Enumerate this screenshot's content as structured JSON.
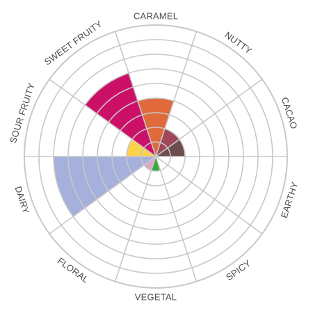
{
  "chart_data": {
    "type": "polar-area",
    "title": "",
    "rings": 9,
    "grid": true,
    "categories": [
      "CARAMEL",
      "NUTTY",
      "CACAO",
      "EARTHY",
      "SPICY",
      "VEGETAL",
      "FLORAL",
      "DAIRY",
      "SOUR FRUITY",
      "SWEET FRUITY"
    ],
    "values": [
      4,
      2,
      2,
      0,
      0,
      1,
      1,
      7,
      2,
      6
    ],
    "colors": [
      "#e06a3c",
      "#a0485a",
      "#6e4c4c",
      "#ffffff",
      "#ffffff",
      "#3aa83a",
      "#e0a6cc",
      "#a6b0dc",
      "#fbd24a",
      "#cc1068"
    ],
    "grid_color": "#c8c8c8"
  }
}
